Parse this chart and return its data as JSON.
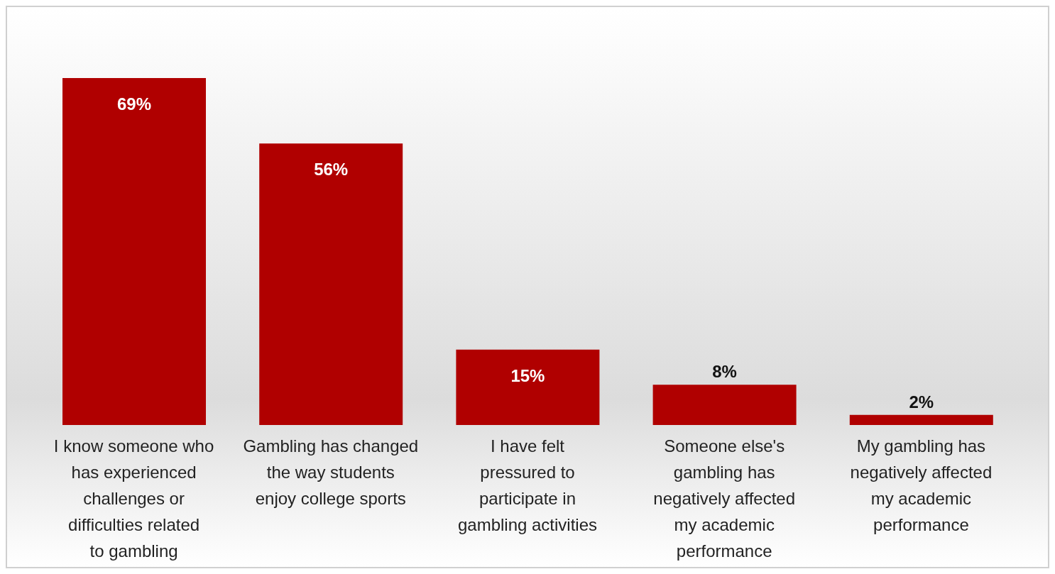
{
  "chart_data": {
    "type": "bar",
    "categories": [
      "I know someone who has experienced challenges or difficulties related to gambling",
      "Gambling has changed the way students enjoy college sports",
      "I have felt pressured to participate in gambling activities",
      "Someone else's gambling has negatively affected my academic performance",
      "My gambling has negatively affected my academic performance"
    ],
    "values": [
      69,
      56,
      15,
      8,
      2
    ],
    "color": "#b00000",
    "data_labels": true,
    "value_labels": [
      "69%",
      "56%",
      "15%",
      "8%",
      "2%"
    ],
    "grid": false,
    "legend": false
  }
}
